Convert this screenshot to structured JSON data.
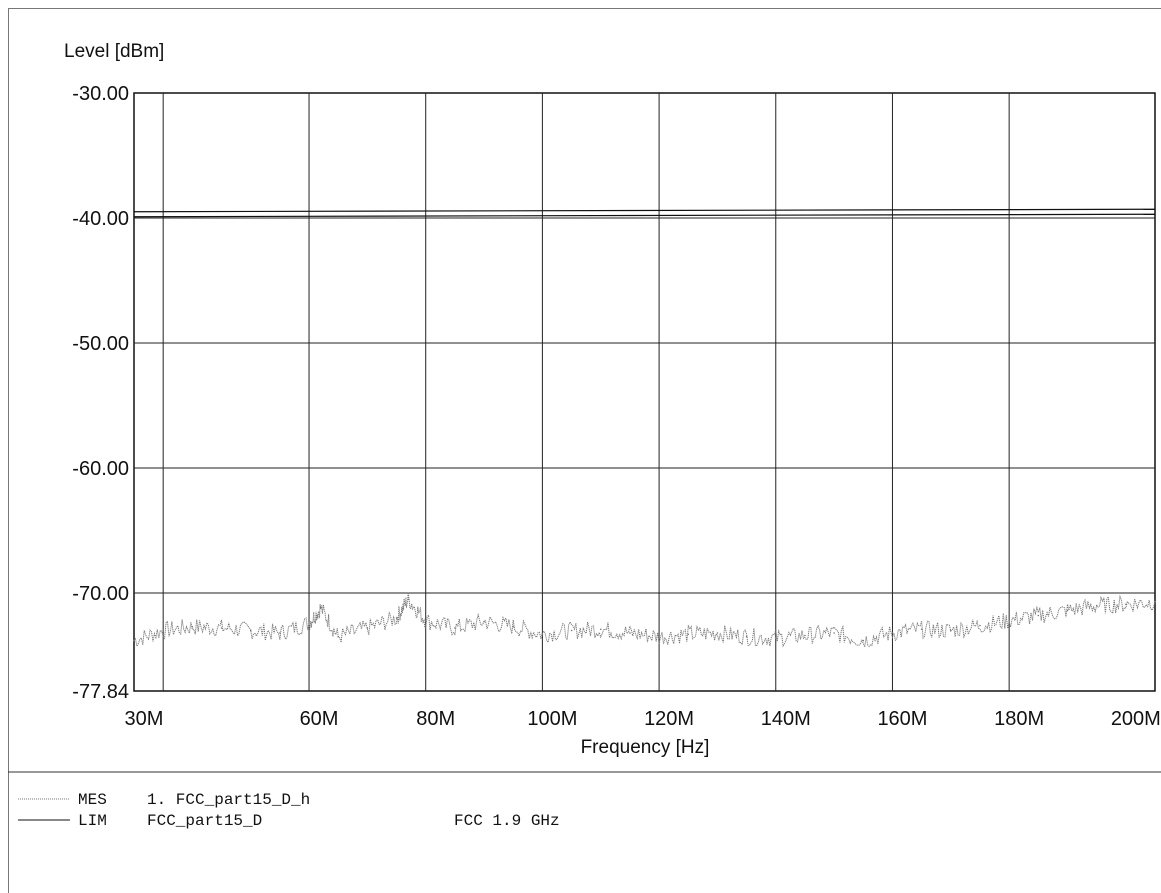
{
  "chart_data": {
    "type": "line",
    "ylabel": "Level [dBm]",
    "xlabel": "Frequency [Hz]",
    "ylim": [
      -77.84,
      -30.0
    ],
    "xlim": [
      30,
      205
    ],
    "y_ticks": [
      "-30.00",
      "-40.00",
      "-50.00",
      "-60.00",
      "-70.00",
      "-77.84"
    ],
    "x_ticks": [
      "30M",
      "60M",
      "80M",
      "100M",
      "120M",
      "140M",
      "160M",
      "180M",
      "200M"
    ],
    "grid": true,
    "series": [
      {
        "name": "1. FCC_part15_D_h",
        "style": "dotted",
        "color": "#777777",
        "x": [
          30,
          35,
          40,
          45,
          50,
          55,
          60,
          62,
          65,
          70,
          75,
          77,
          80,
          85,
          90,
          95,
          100,
          105,
          110,
          115,
          120,
          125,
          130,
          135,
          140,
          145,
          150,
          155,
          160,
          165,
          170,
          175,
          180,
          185,
          190,
          195,
          200,
          205
        ],
        "values": [
          -73.8,
          -73.0,
          -72.7,
          -72.8,
          -73.0,
          -73.2,
          -72.4,
          -71.2,
          -73.5,
          -72.8,
          -72.0,
          -70.5,
          -72.2,
          -72.8,
          -72.3,
          -72.7,
          -73.3,
          -73.0,
          -72.9,
          -73.2,
          -73.5,
          -73.3,
          -73.2,
          -73.5,
          -73.6,
          -73.4,
          -73.2,
          -73.8,
          -73.2,
          -72.9,
          -73.0,
          -72.6,
          -72.2,
          -71.8,
          -71.4,
          -71.0,
          -70.9,
          -70.7
        ]
      },
      {
        "name": "FCC_part15_D",
        "style": "solid",
        "color": "#111111",
        "x": [
          30,
          205
        ],
        "values": [
          -39.5,
          -39.3
        ]
      }
    ]
  },
  "legend": [
    {
      "code": "MES",
      "label": "1. FCC_part15_D_h",
      "note": ""
    },
    {
      "code": "LIM",
      "label": "FCC_part15_D",
      "note": "FCC 1.9 GHz"
    }
  ]
}
